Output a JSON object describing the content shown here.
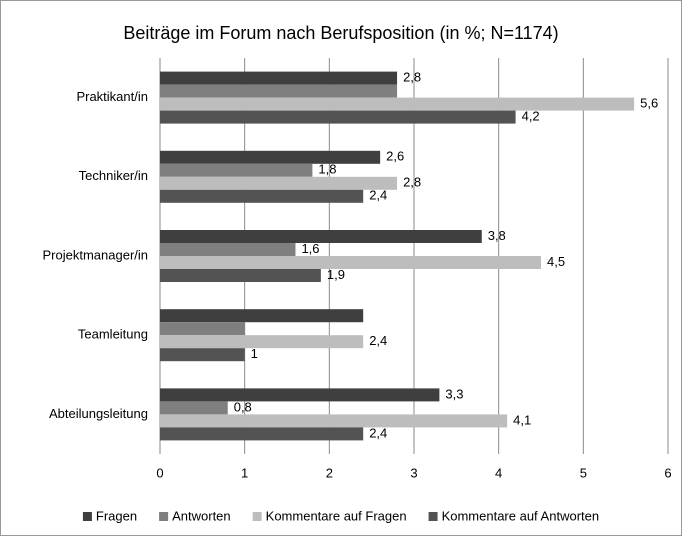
{
  "chart_data": {
    "type": "barh",
    "title": "Beiträge im Forum nach Berufsposition (in %; N=1174)",
    "categories": [
      "Praktikant/in",
      "Techniker/in",
      "Projektmanager/in",
      "Teamleitung",
      "Abteilungsleitung"
    ],
    "series": [
      {
        "name": "Fragen",
        "color": "#3f3f3f",
        "values": [
          2.8,
          2.6,
          3.8,
          2.4,
          3.3
        ],
        "value_labels": [
          "2,8",
          "2,6",
          "3,8",
          null,
          "3,3"
        ]
      },
      {
        "name": "Antworten",
        "color": "#7f7f7f",
        "values": [
          2.8,
          1.8,
          1.6,
          1,
          0.8
        ],
        "value_labels": [
          null,
          "1,8",
          "1,6",
          null,
          "0,8"
        ]
      },
      {
        "name": "Kommentare auf Fragen",
        "color": "#bdbdbd",
        "values": [
          5.6,
          2.8,
          4.5,
          2.4,
          4.1
        ],
        "value_labels": [
          "5,6",
          "2,8",
          "4,5",
          "2,4",
          "4,1"
        ]
      },
      {
        "name": "Kommentare auf Antworten",
        "color": "#535353",
        "values": [
          4.2,
          2.4,
          1.9,
          1,
          2.4
        ],
        "value_labels": [
          "4,2",
          "2,4",
          "1,9",
          "1",
          "2,4"
        ]
      }
    ],
    "xlim": [
      0,
      6
    ],
    "xticks": [
      0,
      1,
      2,
      3,
      4,
      5,
      6
    ],
    "grid": true,
    "legend": "bottom"
  }
}
